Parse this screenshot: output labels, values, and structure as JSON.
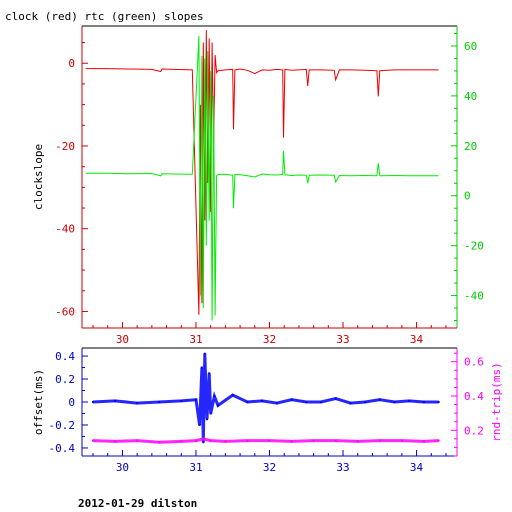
{
  "chart_data": [
    {
      "type": "line",
      "title": "clock (red) rtc (green) slopes",
      "xlabel": "",
      "ylabel": "clockslope",
      "xlim": [
        29.45,
        34.55
      ],
      "ylim": [
        -64,
        9
      ],
      "y2lim": [
        -53,
        68
      ],
      "x_ticks": [
        30,
        31,
        32,
        33,
        34
      ],
      "x_tick_labels": [
        "30",
        "31",
        "32",
        "33",
        "34"
      ],
      "y_ticks": [
        0,
        -20,
        -40,
        -60
      ],
      "y_tick_labels": [
        "0",
        "-20",
        "-40",
        "-60"
      ],
      "y2_ticks": [
        60,
        40,
        20,
        0,
        -20,
        -40
      ],
      "y2_tick_labels": [
        "60",
        "40",
        "20",
        "0",
        "-20",
        "-40"
      ],
      "colors": {
        "x_axis": "#cc0000",
        "y_axis": "#cc0000",
        "y2_axis": "#00cc00"
      },
      "series": [
        {
          "name": "clock",
          "axis": "left",
          "color": "#ee0000",
          "x": [
            29.5,
            29.8,
            30.1,
            30.4,
            30.52,
            30.54,
            30.7,
            30.95,
            31.04,
            31.06,
            31.08,
            31.1,
            31.12,
            31.14,
            31.16,
            31.18,
            31.2,
            31.22,
            31.24,
            31.26,
            31.28,
            31.3,
            31.4,
            31.5,
            31.51,
            31.53,
            31.6,
            31.7,
            31.8,
            31.9,
            32.0,
            32.1,
            32.18,
            32.19,
            32.21,
            32.3,
            32.4,
            32.5,
            32.52,
            32.54,
            32.7,
            32.88,
            32.9,
            32.95,
            33.1,
            33.3,
            33.46,
            33.48,
            33.5,
            33.7,
            33.9,
            34.1,
            34.3
          ],
          "y": [
            -1.3,
            -1.3,
            -1.4,
            -1.5,
            -2.0,
            -1.4,
            -1.5,
            -1.6,
            -60.8,
            -10.0,
            -58.0,
            5.0,
            -38.0,
            8.0,
            -29.0,
            6.0,
            -36.0,
            5.0,
            -20.0,
            2.0,
            -2.3,
            -1.8,
            -1.6,
            -1.5,
            -16.0,
            -1.6,
            -1.4,
            -1.7,
            -2.5,
            -1.6,
            -1.7,
            -1.5,
            -1.6,
            -18.0,
            -1.5,
            -1.7,
            -1.6,
            -1.5,
            -5.5,
            -1.6,
            -1.6,
            -1.7,
            -4.0,
            -1.6,
            -1.6,
            -1.7,
            -1.8,
            -8.0,
            -1.8,
            -1.6,
            -1.6,
            -1.6,
            -1.6
          ]
        },
        {
          "name": "rtc",
          "axis": "right",
          "color": "#00ee00",
          "x": [
            29.5,
            29.8,
            30.1,
            30.4,
            30.52,
            30.54,
            30.7,
            30.95,
            31.04,
            31.06,
            31.08,
            31.1,
            31.12,
            31.14,
            31.16,
            31.18,
            31.2,
            31.22,
            31.24,
            31.26,
            31.28,
            31.3,
            31.4,
            31.5,
            31.51,
            31.53,
            31.6,
            31.7,
            31.8,
            31.9,
            32.0,
            32.1,
            32.18,
            32.19,
            32.21,
            32.3,
            32.4,
            32.5,
            32.52,
            32.54,
            32.7,
            32.88,
            32.9,
            32.95,
            33.1,
            33.3,
            33.46,
            33.48,
            33.5,
            33.7,
            33.9,
            34.1,
            34.3
          ],
          "y": [
            9.0,
            9.0,
            8.8,
            8.9,
            8.0,
            8.8,
            8.7,
            8.6,
            64.0,
            -40.0,
            56.0,
            -45.0,
            55.0,
            -20.0,
            58.0,
            -10.0,
            50.0,
            -50.0,
            40.0,
            -48.0,
            8.0,
            8.5,
            8.6,
            8.2,
            -5.0,
            8.6,
            8.4,
            8.0,
            7.5,
            8.7,
            8.4,
            8.3,
            8.5,
            18.0,
            8.4,
            8.1,
            8.3,
            8.2,
            5.0,
            8.2,
            8.3,
            8.2,
            5.5,
            8.1,
            8.0,
            8.1,
            8.0,
            13.0,
            8.0,
            8.1,
            8.0,
            8.0,
            8.0
          ]
        }
      ]
    },
    {
      "type": "scatter",
      "title": "",
      "xlabel": "",
      "ylabel": "offset(ms)",
      "y2label": "rnd-trip(ms)",
      "xlim": [
        29.45,
        34.55
      ],
      "ylim": [
        -0.47,
        0.47
      ],
      "y2lim": [
        0.05,
        0.68
      ],
      "x_ticks": [
        30,
        31,
        32,
        33,
        34
      ],
      "x_tick_labels": [
        "30",
        "31",
        "32",
        "33",
        "34"
      ],
      "y_ticks": [
        0.4,
        0.2,
        0,
        -0.2,
        -0.4
      ],
      "y_tick_labels": [
        "0.4",
        "0.2",
        "0",
        "-0.2",
        "-0.4"
      ],
      "y2_ticks": [
        0.6,
        0.4,
        0.2
      ],
      "y2_tick_labels": [
        "0.6",
        "0.4",
        "0.2"
      ],
      "colors": {
        "x_axis": "#0000cc",
        "y_axis": "#0000cc",
        "y2_axis": "#ff00ff"
      },
      "series": [
        {
          "name": "offset",
          "axis": "left",
          "color": "#0000ff",
          "x": [
            29.6,
            29.9,
            30.2,
            30.5,
            30.8,
            31.0,
            31.05,
            31.08,
            31.1,
            31.12,
            31.15,
            31.18,
            31.2,
            31.25,
            31.3,
            31.5,
            31.7,
            31.9,
            32.1,
            32.3,
            32.5,
            32.7,
            32.9,
            33.1,
            33.3,
            33.5,
            33.7,
            33.9,
            34.1,
            34.3
          ],
          "y": [
            0.0,
            0.01,
            -0.01,
            0.0,
            0.01,
            0.02,
            -0.2,
            0.3,
            -0.35,
            0.42,
            -0.15,
            0.25,
            -0.1,
            0.05,
            -0.03,
            0.06,
            0.0,
            0.01,
            -0.01,
            0.02,
            0.0,
            0.0,
            0.03,
            -0.01,
            0.0,
            0.02,
            0.0,
            0.01,
            0.0,
            0.0
          ]
        },
        {
          "name": "rnd-trip",
          "axis": "right",
          "color": "#ff00ff",
          "x": [
            29.6,
            29.9,
            30.2,
            30.5,
            30.8,
            31.0,
            31.1,
            31.2,
            31.4,
            31.7,
            32.0,
            32.3,
            32.6,
            32.9,
            33.2,
            33.5,
            33.8,
            34.1,
            34.3
          ],
          "y": [
            0.14,
            0.135,
            0.14,
            0.13,
            0.135,
            0.14,
            0.15,
            0.14,
            0.135,
            0.14,
            0.14,
            0.135,
            0.14,
            0.14,
            0.135,
            0.14,
            0.14,
            0.135,
            0.14
          ]
        }
      ]
    }
  ],
  "footer": "2012-01-29 dilston"
}
